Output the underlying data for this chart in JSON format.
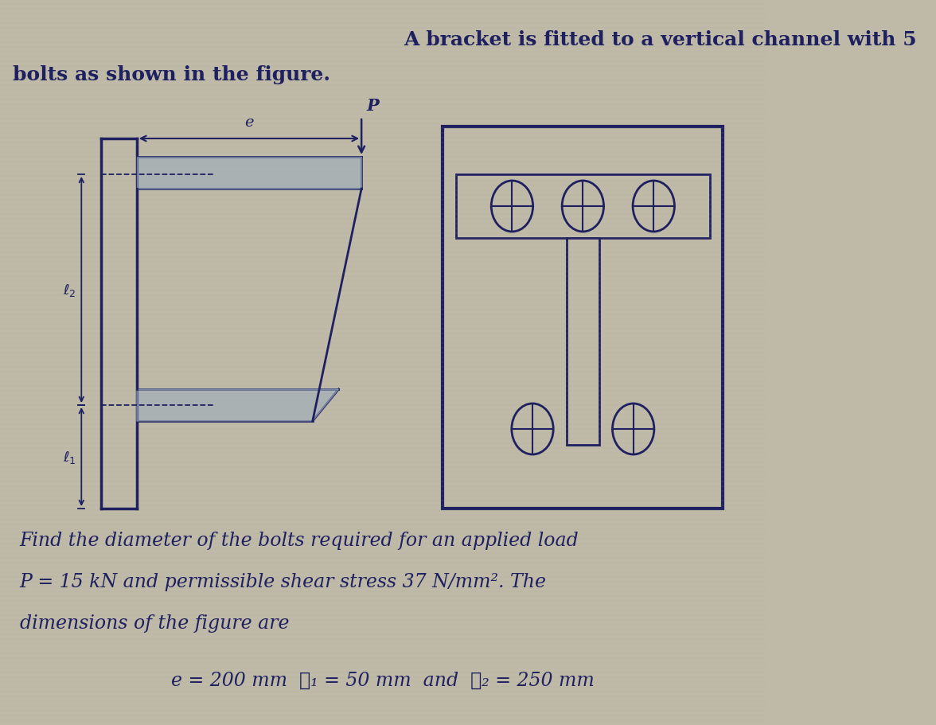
{
  "bg_color": "#bfb9a8",
  "title_line1": "A bracket is fitted to a vertical channel with 5",
  "title_line2": "bolts as shown in the figure.",
  "body_line1": "Find the diameter of the bolts required for an applied load",
  "body_line2": "P = 15 kN and permissible shear stress 37 N/mm². The",
  "body_line3": "dimensions of the figure are",
  "body_line4": "e = 200 mm  ℓ₁ = 50 mm  and  ℓ₂ = 250 mm",
  "text_color": "#1e2060",
  "line_color": "#1e2060",
  "title_fontsize": 18,
  "body_fontsize": 17,
  "formula_fontsize": 17
}
